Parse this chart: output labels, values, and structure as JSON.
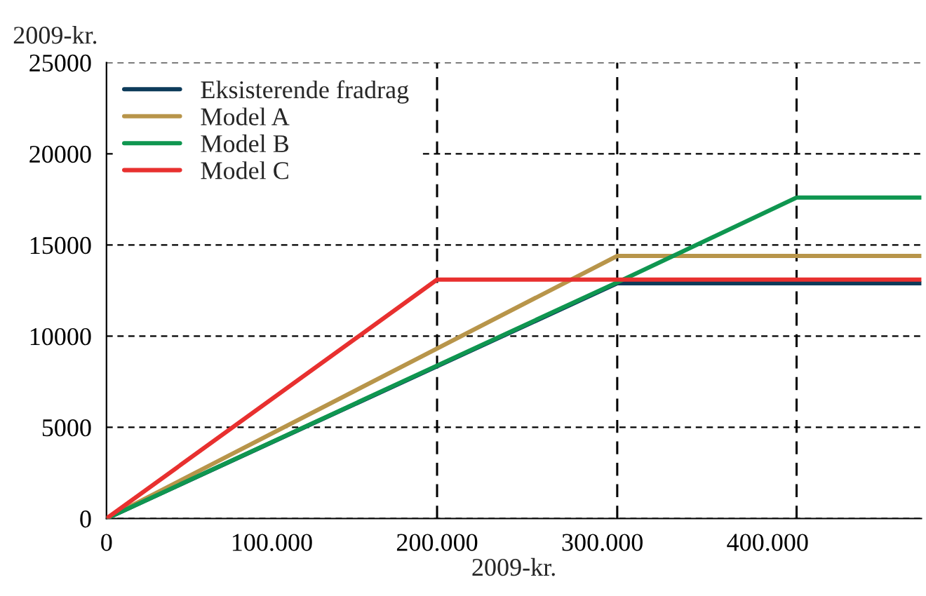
{
  "chart_data": {
    "type": "line",
    "xlabel": "2009-kr.",
    "ylabel": "2009-kr.",
    "xlim": [
      0,
      493000
    ],
    "ylim": [
      0,
      25000
    ],
    "xticks": [
      0,
      {
        "value": 100000,
        "label": "100.000"
      },
      {
        "value": 200000,
        "label": "200.000"
      },
      {
        "value": 300000,
        "label": "300.000"
      },
      {
        "value": 400000,
        "label": "400.000"
      }
    ],
    "yticks": [
      0,
      5000,
      10000,
      15000,
      20000,
      25000
    ],
    "grid": "y",
    "legend": "top left",
    "line_style": "solid",
    "marker": "none",
    "ref_lines": [
      {
        "axis": "x",
        "value": 200000,
        "color": "#000000",
        "line_style": "dashed"
      },
      {
        "axis": "x",
        "value": 309000,
        "color": "#000000",
        "line_style": "dashed"
      },
      {
        "axis": "x",
        "value": 417500,
        "color": "#000000",
        "line_style": "dashed"
      }
    ],
    "series": [
      {
        "name": "Eksisterende fradrag",
        "color": "#0d3b5a",
        "x": [
          0,
          309000,
          493000
        ],
        "values": [
          0,
          12900,
          12900
        ]
      },
      {
        "name": "Model A",
        "color": "#b8954a",
        "x": [
          0,
          309000,
          493000
        ],
        "values": [
          0,
          14400,
          14400
        ]
      },
      {
        "name": "Model B",
        "color": "#0f9650",
        "x": [
          0,
          309000,
          417500,
          493000
        ],
        "values": [
          0,
          12950,
          17600,
          17600
        ]
      },
      {
        "name": "Model C",
        "color": "#e8302f",
        "x": [
          0,
          200000,
          493000
        ],
        "values": [
          0,
          13100,
          13100
        ]
      }
    ]
  }
}
